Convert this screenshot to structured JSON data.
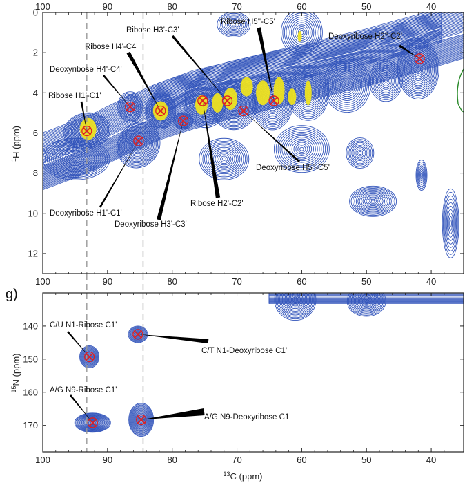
{
  "chart_data": [
    {
      "type": "heatmap",
      "panel": "",
      "xlabel": "",
      "ylabel_main": "H",
      "ylabel_sup": "1",
      "ylabel_unit": "(ppm)",
      "xlim": [
        100,
        35
      ],
      "ylim": [
        0,
        13
      ],
      "x_ticks_top": [
        100,
        90,
        80,
        70,
        60,
        50,
        40
      ],
      "x_ticks_bottom": [
        100,
        90,
        80,
        70,
        60,
        50,
        40
      ],
      "y_ticks": [
        0,
        2,
        4,
        6,
        8,
        10,
        12
      ],
      "contour_color": "#3355bb",
      "highlight_color": "#f2e51a",
      "marker_color": "#e02020",
      "dashed_lines_x": [
        93.2,
        84.5
      ],
      "peaks": [
        {
          "label": "Ribose H1'-C1'",
          "x": 93.2,
          "y": 5.9
        },
        {
          "label": "Deoxyribose H4'-C4'",
          "x": 86.5,
          "y": 4.7
        },
        {
          "label": "Ribose H4'-C4'",
          "x": 81.8,
          "y": 4.9
        },
        {
          "label": "Deoxyribose H1'-C1'",
          "x": 85.2,
          "y": 6.4
        },
        {
          "label": "Deoxyribose H3'-C3'",
          "x": 78.3,
          "y": 5.4
        },
        {
          "label": "Ribose H3'-C3'",
          "x": 71.5,
          "y": 4.4
        },
        {
          "label": "Ribose H2'-C2'",
          "x": 75.3,
          "y": 4.4
        },
        {
          "label": "Ribose H5''-C5'",
          "x": 64.3,
          "y": 4.4
        },
        {
          "label": "Deoxyribose H5''-C5'",
          "x": 69.0,
          "y": 4.9
        },
        {
          "label": "Deoxyribose H2''-C2'",
          "x": 41.8,
          "y": 2.3
        }
      ]
    },
    {
      "type": "heatmap",
      "panel": "g)",
      "xlabel_main": "C (ppm)",
      "xlabel_sup": "13",
      "ylabel_main": "N",
      "ylabel_sup": "15",
      "ylabel_unit": "(ppm)",
      "xlim": [
        100,
        35
      ],
      "ylim": [
        130,
        178
      ],
      "x_ticks": [
        100,
        90,
        80,
        70,
        60,
        50,
        40
      ],
      "y_ticks": [
        140,
        150,
        160,
        170
      ],
      "contour_color": "#3355bb",
      "marker_color": "#e02020",
      "dashed_lines_x": [
        93.2,
        84.5
      ],
      "peaks": [
        {
          "label": "C/U N1-Ribose C1'",
          "x": 92.8,
          "y": 149.3
        },
        {
          "label": "C/T N1-Deoxyribose C1'",
          "x": 85.3,
          "y": 142.5
        },
        {
          "label": "A/G N9-Ribose C1'",
          "x": 92.3,
          "y": 169.2
        },
        {
          "label": "A/G N9-Deoxyribose C1'",
          "x": 84.8,
          "y": 168.3
        }
      ]
    }
  ]
}
